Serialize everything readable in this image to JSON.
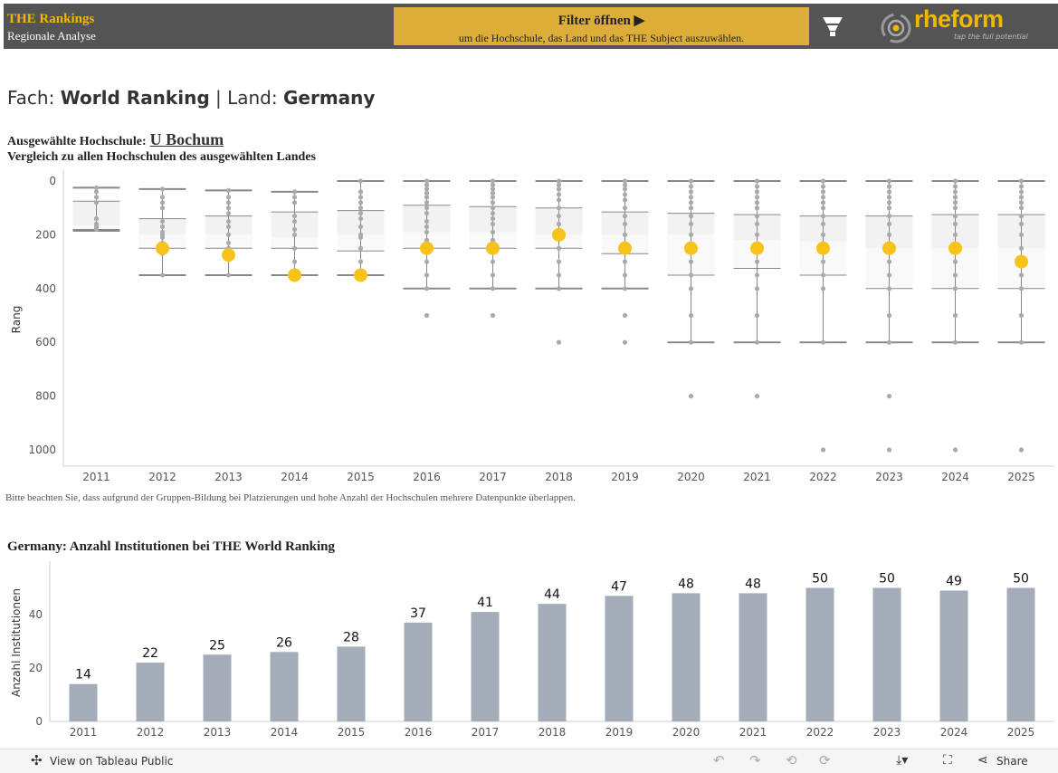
{
  "header": {
    "title": "THE Rankings",
    "subtitle": "Regionale Analyse",
    "filter_label": "Filter öffnen",
    "filter_hint": "um die Hochschule, das Land und das THE Subject auszuwählen.",
    "logo_text": "rheform",
    "logo_tagline": "tap the full potential"
  },
  "page": {
    "fach_label": "Fach: ",
    "fach": "World Ranking",
    "sep": " | Land: ",
    "land": "Germany",
    "selected_label": "Ausgewählte Hochschule:",
    "selected_uni": "U Bochum",
    "compare_label": "Vergleich zu allen Hochschulen des ausgewählten Landes",
    "note": "Bitte beachten Sie, dass aufgrund der Gruppen-Bildung bei Platzierungen und hohe Anzahl der Hochschulen mehrere Datenpunkte überlappen.",
    "count_title": "Germany: Anzahl Institutionen bei THE World Ranking"
  },
  "colors": {
    "header": "#545454",
    "accent": "#f2b800",
    "filter": "#dcae37",
    "bar": "#a3acb8",
    "dot": "#a9a9b0",
    "selected": "#f7c318"
  },
  "chart_data": [
    {
      "type": "boxplot",
      "ylabel": "Rang",
      "ylim": [
        0,
        1050
      ],
      "yticks": [
        0,
        200,
        400,
        600,
        800,
        1000
      ],
      "y_reversed": true,
      "categories": [
        "2011",
        "2012",
        "2013",
        "2014",
        "2015",
        "2016",
        "2017",
        "2018",
        "2019",
        "2020",
        "2021",
        "2022",
        "2023",
        "2024",
        "2025"
      ],
      "boxes": [
        {
          "min": 25,
          "q1": 75,
          "median": 165,
          "q3": 180,
          "max": 185,
          "selected": null,
          "points": [
            25,
            40,
            60,
            80,
            140,
            160,
            170,
            175,
            180
          ]
        },
        {
          "min": 30,
          "q1": 140,
          "median": 200,
          "q3": 250,
          "max": 350,
          "selected": 250,
          "points": [
            30,
            60,
            80,
            100,
            150,
            170,
            190,
            200,
            210,
            230,
            250,
            270,
            350
          ]
        },
        {
          "min": 35,
          "q1": 130,
          "median": 200,
          "q3": 250,
          "max": 350,
          "selected": 275,
          "points": [
            35,
            60,
            80,
            100,
            120,
            150,
            170,
            200,
            230,
            250,
            275,
            350
          ]
        },
        {
          "min": 40,
          "q1": 115,
          "median": 210,
          "q3": 250,
          "max": 350,
          "selected": 350,
          "points": [
            40,
            60,
            80,
            130,
            150,
            180,
            200,
            250,
            300,
            350
          ]
        },
        {
          "min": 0,
          "q1": 110,
          "median": 200,
          "q3": 260,
          "max": 350,
          "selected": 350,
          "points": [
            0,
            40,
            60,
            80,
            100,
            120,
            140,
            170,
            200,
            210,
            250,
            300,
            350
          ]
        },
        {
          "min": 0,
          "q1": 90,
          "median": 190,
          "q3": 250,
          "max": 400,
          "selected": 250,
          "points": [
            0,
            15,
            30,
            45,
            60,
            80,
            100,
            120,
            150,
            170,
            190,
            220,
            250,
            300,
            350,
            400,
            500
          ]
        },
        {
          "min": 0,
          "q1": 95,
          "median": 190,
          "q3": 250,
          "max": 400,
          "selected": 250,
          "points": [
            0,
            15,
            30,
            45,
            60,
            80,
            100,
            120,
            140,
            160,
            190,
            220,
            250,
            300,
            350,
            400,
            500
          ]
        },
        {
          "min": 0,
          "q1": 100,
          "median": 200,
          "q3": 250,
          "max": 400,
          "selected": 200,
          "points": [
            0,
            15,
            30,
            50,
            70,
            100,
            130,
            160,
            200,
            250,
            300,
            350,
            400,
            600
          ]
        },
        {
          "min": 0,
          "q1": 115,
          "median": 200,
          "q3": 270,
          "max": 400,
          "selected": 250,
          "points": [
            0,
            15,
            30,
            50,
            70,
            100,
            130,
            160,
            200,
            250,
            300,
            350,
            400,
            500,
            600
          ]
        },
        {
          "min": 0,
          "q1": 120,
          "median": 200,
          "q3": 350,
          "max": 600,
          "selected": 250,
          "points": [
            0,
            20,
            40,
            60,
            80,
            100,
            130,
            160,
            200,
            250,
            300,
            350,
            400,
            500,
            600,
            800
          ]
        },
        {
          "min": 0,
          "q1": 125,
          "median": 220,
          "q3": 325,
          "max": 600,
          "selected": 250,
          "points": [
            0,
            20,
            40,
            60,
            80,
            100,
            130,
            160,
            200,
            250,
            300,
            350,
            400,
            500,
            600,
            800
          ]
        },
        {
          "min": 0,
          "q1": 130,
          "median": 225,
          "q3": 350,
          "max": 600,
          "selected": 250,
          "points": [
            0,
            20,
            40,
            60,
            80,
            100,
            130,
            160,
            200,
            250,
            300,
            350,
            400,
            600,
            1000
          ]
        },
        {
          "min": 0,
          "q1": 130,
          "median": 250,
          "q3": 400,
          "max": 600,
          "selected": 250,
          "points": [
            0,
            20,
            40,
            60,
            80,
            100,
            130,
            160,
            200,
            250,
            300,
            350,
            400,
            500,
            600,
            800,
            1000
          ]
        },
        {
          "min": 0,
          "q1": 125,
          "median": 250,
          "q3": 400,
          "max": 600,
          "selected": 250,
          "points": [
            0,
            20,
            40,
            60,
            80,
            100,
            130,
            160,
            200,
            250,
            300,
            350,
            400,
            500,
            600,
            1000
          ]
        },
        {
          "min": 0,
          "q1": 125,
          "median": 250,
          "q3": 400,
          "max": 600,
          "selected": 300,
          "points": [
            0,
            20,
            40,
            60,
            80,
            100,
            130,
            160,
            200,
            250,
            300,
            350,
            400,
            500,
            600,
            1000
          ]
        }
      ]
    },
    {
      "type": "bar",
      "ylabel": "Anzahl Institutionen",
      "ylim": [
        0,
        60
      ],
      "yticks": [
        0,
        20,
        40
      ],
      "categories": [
        "2011",
        "2012",
        "2013",
        "2014",
        "2015",
        "2016",
        "2017",
        "2018",
        "2019",
        "2020",
        "2021",
        "2022",
        "2023",
        "2024",
        "2025"
      ],
      "values": [
        14,
        22,
        25,
        26,
        28,
        37,
        41,
        44,
        47,
        48,
        48,
        50,
        50,
        49,
        50
      ]
    }
  ],
  "footer": {
    "view_label": "View on Tableau Public",
    "share_label": "Share"
  }
}
